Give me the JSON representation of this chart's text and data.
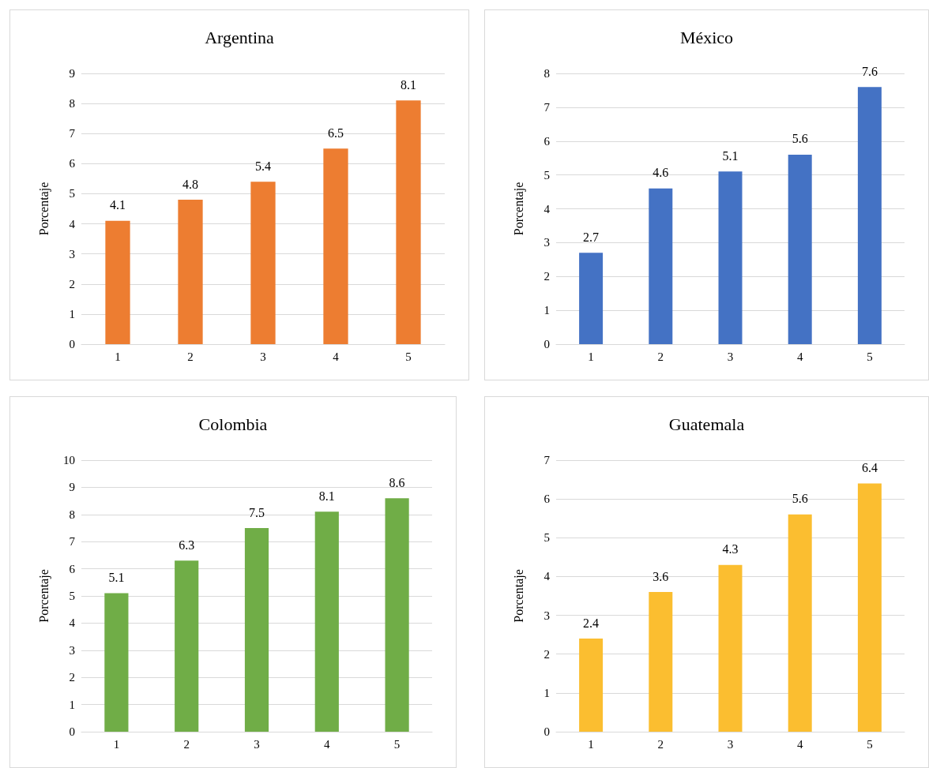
{
  "chart_data": [
    {
      "type": "bar",
      "title": "Argentina",
      "ylabel": "Porcentaje",
      "categories": [
        "1",
        "2",
        "3",
        "4",
        "5"
      ],
      "values": [
        4.1,
        4.8,
        5.4,
        6.5,
        8.1
      ],
      "color": "#ed7d31",
      "ylim": [
        0,
        9
      ],
      "yticks": [
        0,
        1,
        2,
        3,
        4,
        5,
        6,
        7,
        8,
        9
      ],
      "grid": "y",
      "data_labels": true
    },
    {
      "type": "bar",
      "title": "México",
      "ylabel": "Porcentaje",
      "categories": [
        "1",
        "2",
        "3",
        "4",
        "5"
      ],
      "values": [
        2.7,
        4.6,
        5.1,
        5.6,
        7.6
      ],
      "color": "#4472c4",
      "ylim": [
        0,
        8
      ],
      "yticks": [
        0,
        1,
        2,
        3,
        4,
        5,
        6,
        7,
        8
      ],
      "grid": "y",
      "data_labels": true
    },
    {
      "type": "bar",
      "title": "Colombia",
      "ylabel": "Porcentaje",
      "categories": [
        "1",
        "2",
        "3",
        "4",
        "5"
      ],
      "values": [
        5.1,
        6.3,
        7.5,
        8.1,
        8.6
      ],
      "color": "#70ad47",
      "ylim": [
        0,
        10
      ],
      "yticks": [
        0,
        1,
        2,
        3,
        4,
        5,
        6,
        7,
        8,
        9,
        10
      ],
      "grid": "y",
      "data_labels": true
    },
    {
      "type": "bar",
      "title": "Guatemala",
      "ylabel": "Porcentaje",
      "categories": [
        "1",
        "2",
        "3",
        "4",
        "5"
      ],
      "values": [
        2.4,
        3.6,
        4.3,
        5.6,
        6.4
      ],
      "color": "#fbbe30",
      "ylim": [
        0,
        7
      ],
      "yticks": [
        0,
        1,
        2,
        3,
        4,
        5,
        6,
        7
      ],
      "grid": "y",
      "data_labels": true
    }
  ]
}
